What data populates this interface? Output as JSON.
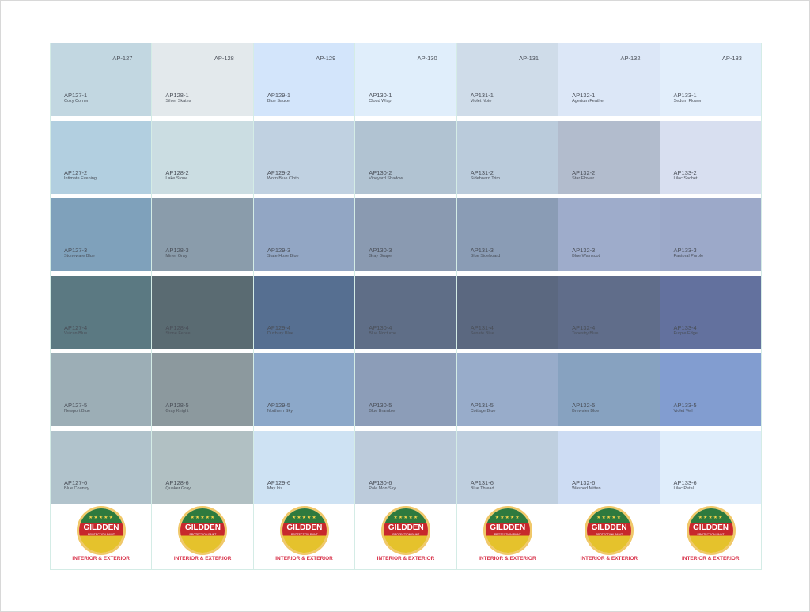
{
  "logo": {
    "brand": "GILDDEN",
    "subtitle": "PROTECTION PAINT",
    "stars": "★★★★★",
    "tagline": "INTERIOR & EXTERIOR"
  },
  "columns": [
    {
      "header": "AP-127",
      "swatches": [
        {
          "code": "AP127-1",
          "name": "Cozy Corner",
          "color": "#c2d7e1"
        },
        {
          "code": "AP127-2",
          "name": "Intimate Evening",
          "color": "#b2cfe0"
        },
        {
          "code": "AP127-3",
          "name": "Stoneware Blue",
          "color": "#7fa1bb"
        },
        {
          "code": "AP127-4",
          "name": "Vulcan Blue",
          "color": "#5b7982"
        },
        {
          "code": "AP127-5",
          "name": "Newport Blue",
          "color": "#9caeb6"
        },
        {
          "code": "AP127-6",
          "name": "Blue Country",
          "color": "#b1c3cc"
        }
      ]
    },
    {
      "header": "AP-128",
      "swatches": [
        {
          "code": "AP128-1",
          "name": "Silver Skates",
          "color": "#e3e9ec"
        },
        {
          "code": "AP128-2",
          "name": "Lake Stone",
          "color": "#cbdde2"
        },
        {
          "code": "AP128-3",
          "name": "Miner Gray",
          "color": "#8a9cab"
        },
        {
          "code": "AP128-4",
          "name": "Stone Fence",
          "color": "#5a6b72"
        },
        {
          "code": "AP128-5",
          "name": "Gray Knight",
          "color": "#8c999e"
        },
        {
          "code": "AP128-6",
          "name": "Quaker Gray",
          "color": "#b1c0c3"
        }
      ]
    },
    {
      "header": "AP-129",
      "swatches": [
        {
          "code": "AP129-1",
          "name": "Blue Saucer",
          "color": "#d3e5fb"
        },
        {
          "code": "AP129-2",
          "name": "Worn Blue Cloth",
          "color": "#c0d1e1"
        },
        {
          "code": "AP129-3",
          "name": "State Hose Blue",
          "color": "#92a6c4"
        },
        {
          "code": "AP129-4",
          "name": "Duxbury Blue",
          "color": "#566f91"
        },
        {
          "code": "AP129-5",
          "name": "Northern Sky",
          "color": "#8ca8c9"
        },
        {
          "code": "AP129-6",
          "name": "May Iris",
          "color": "#cee2f3"
        }
      ]
    },
    {
      "header": "AP-130",
      "swatches": [
        {
          "code": "AP130-1",
          "name": "Cloud Wisp",
          "color": "#e0eefb"
        },
        {
          "code": "AP130-2",
          "name": "Vineyard Shadow",
          "color": "#b1c3d2"
        },
        {
          "code": "AP130-3",
          "name": "Gray Grape",
          "color": "#8a9ab1"
        },
        {
          "code": "AP130-4",
          "name": "Blue Nocturne",
          "color": "#5f6e87"
        },
        {
          "code": "AP130-5",
          "name": "Blue Bramble",
          "color": "#8c9db8"
        },
        {
          "code": "AP130-6",
          "name": "Pale Mon Sky",
          "color": "#bccbdb"
        }
      ]
    },
    {
      "header": "AP-131",
      "swatches": [
        {
          "code": "AP131-1",
          "name": "Violet Note",
          "color": "#cfdce9"
        },
        {
          "code": "AP131-2",
          "name": "Sideboard Trim",
          "color": "#bacbdb"
        },
        {
          "code": "AP131-3",
          "name": "Blue Sideboard",
          "color": "#8a9cb5"
        },
        {
          "code": "AP131-4",
          "name": "Senate Blue",
          "color": "#5b6880"
        },
        {
          "code": "AP131-5",
          "name": "Cottage Blue",
          "color": "#98acca"
        },
        {
          "code": "AP131-6",
          "name": "Blue Thread",
          "color": "#bfcfdf"
        }
      ]
    },
    {
      "header": "AP-132",
      "swatches": [
        {
          "code": "AP132-1",
          "name": "Agertum Feather",
          "color": "#dce7f7"
        },
        {
          "code": "AP132-2",
          "name": "Star Flower",
          "color": "#b2bccd"
        },
        {
          "code": "AP132-3",
          "name": "Blue Wainscot",
          "color": "#9eaccb"
        },
        {
          "code": "AP132-4",
          "name": "Tapestry Blue",
          "color": "#606d8a"
        },
        {
          "code": "AP132-5",
          "name": "Brewster Blue",
          "color": "#87a2c0"
        },
        {
          "code": "AP132-6",
          "name": "Washed Mitten",
          "color": "#cddcf3"
        }
      ]
    },
    {
      "header": "AP-133",
      "swatches": [
        {
          "code": "AP133-1",
          "name": "Sedum Flower",
          "color": "#e2eefb"
        },
        {
          "code": "AP133-2",
          "name": "Lilac Sachet",
          "color": "#d8dff0"
        },
        {
          "code": "AP133-3",
          "name": "Pastoral Purple",
          "color": "#9ca9c9"
        },
        {
          "code": "AP133-4",
          "name": "Purple Edge",
          "color": "#63719e"
        },
        {
          "code": "AP133-5",
          "name": "Violet Veil",
          "color": "#829dd0"
        },
        {
          "code": "AP133-6",
          "name": "Lilac Petal",
          "color": "#dfedfb"
        }
      ]
    }
  ]
}
